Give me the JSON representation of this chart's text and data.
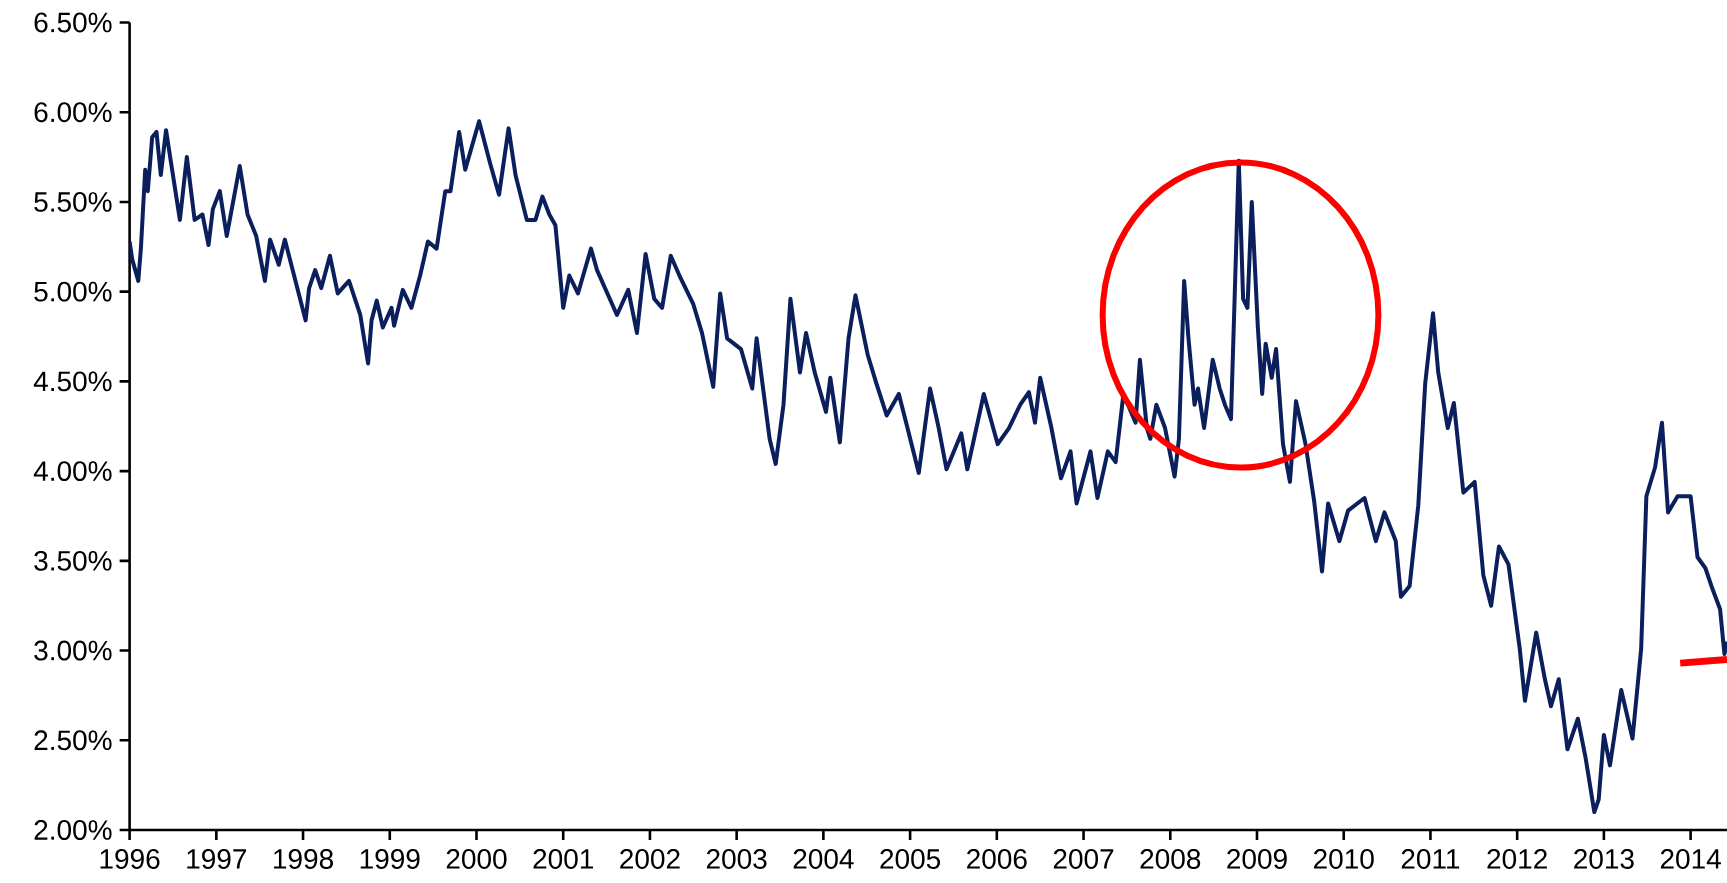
{
  "chart_data": {
    "type": "line",
    "x": [
      1996.0,
      1996.03,
      1996.1,
      1996.13,
      1996.18,
      1996.21,
      1996.26,
      1996.31,
      1996.36,
      1996.42,
      1996.49,
      1996.58,
      1996.66,
      1996.75,
      1996.84,
      1996.91,
      1996.96,
      1997.04,
      1997.12,
      1997.27,
      1997.36,
      1997.46,
      1997.56,
      1997.62,
      1997.72,
      1997.79,
      1997.95,
      1998.03,
      1998.07,
      1998.14,
      1998.21,
      1998.31,
      1998.4,
      1998.53,
      1998.66,
      1998.75,
      1998.79,
      1998.85,
      1998.92,
      1999.02,
      1999.05,
      1999.15,
      1999.25,
      1999.35,
      1999.44,
      1999.54,
      1999.64,
      1999.7,
      1999.8,
      1999.87,
      2000.03,
      2000.16,
      2000.26,
      2000.37,
      2000.45,
      2000.58,
      2000.68,
      2000.76,
      2000.84,
      2000.91,
      2001.0,
      2001.07,
      2001.17,
      2001.32,
      2001.39,
      2001.62,
      2001.75,
      2001.85,
      2001.95,
      2002.05,
      2002.14,
      2002.24,
      2002.34,
      2002.5,
      2002.6,
      2002.73,
      2002.81,
      2002.89,
      2003.05,
      2003.18,
      2003.23,
      2003.38,
      2003.45,
      2003.54,
      2003.62,
      2003.73,
      2003.8,
      2003.9,
      2004.03,
      2004.08,
      2004.19,
      2004.29,
      2004.37,
      2004.51,
      2004.61,
      2004.73,
      2004.87,
      2004.97,
      2005.1,
      2005.23,
      2005.33,
      2005.42,
      2005.59,
      2005.66,
      2005.85,
      2006.01,
      2006.14,
      2006.27,
      2006.37,
      2006.44,
      2006.5,
      2006.63,
      2006.74,
      2006.85,
      2006.92,
      2007.08,
      2007.16,
      2007.28,
      2007.37,
      2007.46,
      2007.6,
      2007.65,
      2007.73,
      2007.77,
      2007.84,
      2007.94,
      2008.05,
      2008.1,
      2008.16,
      2008.21,
      2008.28,
      2008.32,
      2008.39,
      2008.49,
      2008.57,
      2008.63,
      2008.7,
      2008.75,
      2008.79,
      2008.84,
      2008.89,
      2008.94,
      2009.01,
      2009.06,
      2009.1,
      2009.17,
      2009.22,
      2009.3,
      2009.38,
      2009.45,
      2009.56,
      2009.66,
      2009.75,
      2009.82,
      2009.95,
      2010.05,
      2010.24,
      2010.37,
      2010.47,
      2010.6,
      2010.66,
      2010.76,
      2010.86,
      2010.94,
      2011.03,
      2011.09,
      2011.2,
      2011.27,
      2011.38,
      2011.51,
      2011.61,
      2011.7,
      2011.79,
      2011.9,
      2012.03,
      2012.09,
      2012.22,
      2012.32,
      2012.39,
      2012.48,
      2012.58,
      2012.7,
      2012.79,
      2012.89,
      2012.94,
      2013.0,
      2013.07,
      2013.2,
      2013.33,
      2013.43,
      2013.49,
      2013.59,
      2013.67,
      2013.74,
      2013.85,
      2014.0,
      2014.08,
      2014.17,
      2014.24,
      2014.34,
      2014.39,
      2014.42
    ],
    "xlim": [
      1996,
      2014.42
    ],
    "xticks": [
      1996,
      1997,
      1998,
      1999,
      2000,
      2001,
      2002,
      2003,
      2004,
      2005,
      2006,
      2007,
      2008,
      2009,
      2010,
      2011,
      2012,
      2013,
      2014
    ],
    "ylim": [
      2.0,
      6.5
    ],
    "yticks": [
      {
        "value": 2.0,
        "label": "2.00%"
      },
      {
        "value": 2.5,
        "label": "2.50%"
      },
      {
        "value": 3.0,
        "label": "3.00%"
      },
      {
        "value": 3.5,
        "label": "3.50%"
      },
      {
        "value": 4.0,
        "label": "4.00%"
      },
      {
        "value": 4.5,
        "label": "4.50%"
      },
      {
        "value": 5.0,
        "label": "5.00%"
      },
      {
        "value": 5.5,
        "label": "5.50%"
      },
      {
        "value": 6.0,
        "label": "6.00%"
      },
      {
        "value": 6.5,
        "label": "6.50%"
      }
    ],
    "series": [
      {
        "color": "#0a1f5c",
        "values": [
          5.28,
          5.18,
          5.06,
          5.24,
          5.68,
          5.56,
          5.86,
          5.89,
          5.65,
          5.9,
          5.68,
          5.4,
          5.75,
          5.4,
          5.43,
          5.26,
          5.46,
          5.56,
          5.31,
          5.7,
          5.43,
          5.31,
          5.06,
          5.29,
          5.15,
          5.29,
          4.99,
          4.84,
          5.02,
          5.12,
          5.02,
          5.2,
          4.99,
          5.06,
          4.87,
          4.6,
          4.84,
          4.95,
          4.8,
          4.91,
          4.81,
          5.01,
          4.91,
          5.09,
          5.28,
          5.24,
          5.56,
          5.56,
          5.89,
          5.68,
          5.95,
          5.71,
          5.54,
          5.91,
          5.65,
          5.4,
          5.4,
          5.53,
          5.43,
          5.37,
          4.91,
          5.09,
          4.99,
          5.24,
          5.12,
          4.87,
          5.01,
          4.77,
          5.21,
          4.96,
          4.91,
          5.2,
          5.09,
          4.93,
          4.77,
          4.47,
          4.99,
          4.74,
          4.68,
          4.46,
          4.74,
          4.18,
          4.04,
          4.37,
          4.96,
          4.55,
          4.77,
          4.55,
          4.33,
          4.52,
          4.16,
          4.74,
          4.98,
          4.65,
          4.49,
          4.31,
          4.43,
          4.24,
          3.99,
          4.46,
          4.24,
          4.01,
          4.21,
          4.01,
          4.43,
          4.15,
          4.24,
          4.37,
          4.44,
          4.27,
          4.52,
          4.24,
          3.96,
          4.11,
          3.82,
          4.11,
          3.85,
          4.11,
          4.05,
          4.43,
          4.27,
          4.62,
          4.24,
          4.18,
          4.37,
          4.24,
          3.97,
          4.18,
          5.06,
          4.74,
          4.37,
          4.46,
          4.24,
          4.62,
          4.46,
          4.37,
          4.29,
          5.09,
          5.73,
          4.96,
          4.91,
          5.5,
          4.8,
          4.43,
          4.71,
          4.52,
          4.68,
          4.15,
          3.94,
          4.39,
          4.15,
          3.83,
          3.44,
          3.82,
          3.61,
          3.78,
          3.85,
          3.61,
          3.77,
          3.61,
          3.3,
          3.36,
          3.81,
          4.49,
          4.88,
          4.55,
          4.24,
          4.38,
          3.88,
          3.94,
          3.42,
          3.25,
          3.58,
          3.48,
          3.01,
          2.72,
          3.1,
          2.84,
          2.69,
          2.84,
          2.45,
          2.62,
          2.4,
          2.1,
          2.17,
          2.53,
          2.36,
          2.78,
          2.51,
          3.01,
          3.86,
          4.02,
          4.27,
          3.77,
          3.86,
          3.86,
          3.52,
          3.46,
          3.36,
          3.23,
          2.98,
          3.05
        ]
      },
      {
        "type": "line",
        "color": "#ff0000",
        "x": [
          2013.88,
          2014.42
        ],
        "values": [
          2.93,
          2.95
        ]
      }
    ]
  }
}
